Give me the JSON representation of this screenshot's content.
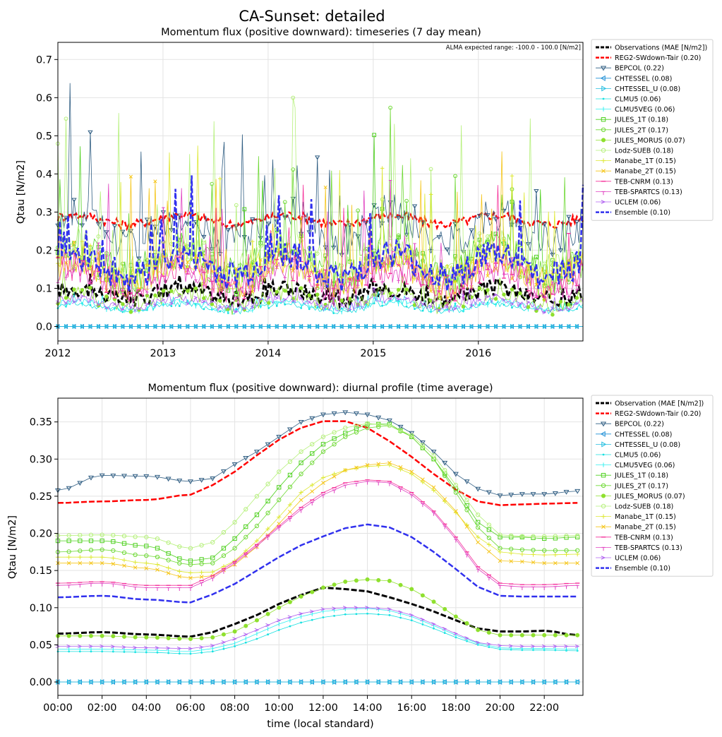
{
  "figure": {
    "suptitle": "CA-Sunset: detailed"
  },
  "chart_data": [
    {
      "type": "line",
      "title": "Momentum flux (positive downward): timeseries (7 day mean)",
      "annotation": "ALMA expected range: -100.0 - 100.0 [N/m2]",
      "xlabel": "",
      "ylabel": "Qtau [N/m2]",
      "xlim": [
        2012.0,
        2016.995
      ],
      "ylim": [
        -0.038,
        0.745
      ],
      "xticks": [
        2012,
        2013,
        2014,
        2015,
        2016
      ],
      "xtick_labels": [
        "2012",
        "2013",
        "2014",
        "2015",
        "2016"
      ],
      "yticks": [
        0.0,
        0.1,
        0.2,
        0.3,
        0.4,
        0.5,
        0.6,
        0.7
      ],
      "ytick_labels": [
        "0.0",
        "0.1",
        "0.2",
        "0.3",
        "0.4",
        "0.5",
        "0.6",
        "0.7"
      ],
      "grid": true,
      "legend_position": "outside-right",
      "series": [
        {
          "name": "Observations (MAE [N/m2])",
          "color": "#000000",
          "style": "dashed",
          "marker": "",
          "width": 3,
          "base": 0.085,
          "noise": 0.022,
          "season": 0.015,
          "spike": 0.012
        },
        {
          "name": "REG2-SWdown-Tair (0.20)",
          "color": "#ff0000",
          "style": "dashed",
          "marker": "",
          "width": 2.5,
          "base": 0.28,
          "noise": 0.012,
          "season": 0.012,
          "spike": 0.0
        },
        {
          "name": "BEPCOL (0.22)",
          "color": "#2f5d82",
          "style": "solid",
          "marker": "tri-down",
          "width": 0.8,
          "base": 0.26,
          "noise": 0.05,
          "season": 0.04,
          "spike": 0.08
        },
        {
          "name": "CHTESSEL (0.08)",
          "color": "#1f8fd6",
          "style": "solid",
          "marker": "tri-left",
          "width": 0.8,
          "base": 0.0,
          "noise": 0.0,
          "season": 0.0,
          "spike": 0.0
        },
        {
          "name": "CHTESSEL_U (0.08)",
          "color": "#22bde0",
          "style": "solid",
          "marker": "tri-right",
          "width": 0.8,
          "base": 0.0,
          "noise": 0.0,
          "season": 0.0,
          "spike": 0.0
        },
        {
          "name": "CLMU5 (0.06)",
          "color": "#17e0e0",
          "style": "solid",
          "marker": "dot",
          "width": 0.8,
          "base": 0.05,
          "noise": 0.008,
          "season": 0.01,
          "spike": 0.005
        },
        {
          "name": "CLMU5VEG (0.06)",
          "color": "#30f0f0",
          "style": "solid",
          "marker": "vline",
          "width": 0.8,
          "base": 0.055,
          "noise": 0.009,
          "season": 0.01,
          "spike": 0.006
        },
        {
          "name": "JULES_1T (0.18)",
          "color": "#4fd11f",
          "style": "solid",
          "marker": "square",
          "width": 0.8,
          "base": 0.17,
          "noise": 0.05,
          "season": 0.04,
          "spike": 0.1
        },
        {
          "name": "JULES_2T (0.17)",
          "color": "#6fd935",
          "style": "solid",
          "marker": "circle",
          "width": 0.8,
          "base": 0.16,
          "noise": 0.05,
          "season": 0.04,
          "spike": 0.095
        },
        {
          "name": "JULES_MORUS (0.07)",
          "color": "#8fe02e",
          "style": "solid",
          "marker": "filled-circle",
          "width": 0.8,
          "base": 0.07,
          "noise": 0.02,
          "season": 0.02,
          "spike": 0.015
        },
        {
          "name": "Lodz-SUEB (0.18)",
          "color": "#b5f07a",
          "style": "solid",
          "marker": "circle",
          "width": 0.8,
          "base": 0.18,
          "noise": 0.05,
          "season": 0.04,
          "spike": 0.1
        },
        {
          "name": "Manabe_1T (0.15)",
          "color": "#dde830",
          "style": "solid",
          "marker": "plus",
          "width": 0.8,
          "base": 0.15,
          "noise": 0.045,
          "season": 0.035,
          "spike": 0.08
        },
        {
          "name": "Manabe_2T (0.15)",
          "color": "#f5c518",
          "style": "solid",
          "marker": "x",
          "width": 0.8,
          "base": 0.145,
          "noise": 0.045,
          "season": 0.035,
          "spike": 0.08
        },
        {
          "name": "TEB-CNRM (0.13)",
          "color": "#f5309a",
          "style": "solid",
          "marker": "dash",
          "width": 0.8,
          "base": 0.13,
          "noise": 0.04,
          "season": 0.03,
          "spike": 0.06
        },
        {
          "name": "TEB-SPARTCS (0.13)",
          "color": "#e040c0",
          "style": "solid",
          "marker": "tick",
          "width": 0.8,
          "base": 0.125,
          "noise": 0.04,
          "season": 0.03,
          "spike": 0.06
        },
        {
          "name": "UCLEM (0.06)",
          "color": "#b060f0",
          "style": "solid",
          "marker": "arrow",
          "width": 0.8,
          "base": 0.06,
          "noise": 0.012,
          "season": 0.012,
          "spike": 0.008
        },
        {
          "name": "Ensemble (0.10)",
          "color": "#3030ee",
          "style": "dashed",
          "marker": "",
          "width": 2.5,
          "base": 0.16,
          "noise": 0.04,
          "season": 0.03,
          "spike": 0.05
        }
      ]
    },
    {
      "type": "line",
      "title": "Momentum flux (positive downward): diurnal profile (time average)",
      "xlabel": "time (local standard)",
      "ylabel": "Qtau [N/m2]",
      "xlim": [
        0,
        23.75
      ],
      "ylim": [
        -0.018,
        0.382
      ],
      "xticks": [
        0,
        2,
        4,
        6,
        8,
        10,
        12,
        14,
        16,
        18,
        20,
        22
      ],
      "xtick_labels": [
        "00:00",
        "02:00",
        "04:00",
        "06:00",
        "08:00",
        "10:00",
        "12:00",
        "14:00",
        "16:00",
        "18:00",
        "20:00",
        "22:00"
      ],
      "yticks": [
        0.0,
        0.05,
        0.1,
        0.15,
        0.2,
        0.25,
        0.3,
        0.35
      ],
      "ytick_labels": [
        "0.00",
        "0.05",
        "0.10",
        "0.15",
        "0.20",
        "0.25",
        "0.30",
        "0.35"
      ],
      "grid": true,
      "legend_position": "outside-right",
      "x": [
        0,
        2,
        4,
        6,
        7,
        8,
        9,
        10,
        11,
        12,
        13,
        14,
        15,
        16,
        17,
        18,
        19,
        20,
        21,
        22,
        23.5
      ],
      "series": [
        {
          "name": "Observation (MAE [N/m2])",
          "color": "#000000",
          "style": "dashed",
          "marker": "",
          "width": 3,
          "values": [
            0.065,
            0.067,
            0.064,
            0.061,
            0.067,
            0.078,
            0.09,
            0.105,
            0.117,
            0.127,
            0.125,
            0.122,
            0.114,
            0.105,
            0.095,
            0.083,
            0.072,
            0.068,
            0.068,
            0.069,
            0.063
          ]
        },
        {
          "name": "REG2-SWdown-Tair (0.20)",
          "color": "#ff0000",
          "style": "dashed",
          "marker": "",
          "width": 2.5,
          "values": [
            0.241,
            0.243,
            0.245,
            0.252,
            0.265,
            0.283,
            0.305,
            0.326,
            0.342,
            0.351,
            0.351,
            0.342,
            0.324,
            0.303,
            0.28,
            0.259,
            0.243,
            0.238,
            0.239,
            0.24,
            0.241
          ]
        },
        {
          "name": "BEPCOL (0.22)",
          "color": "#2f5d82",
          "style": "solid",
          "marker": "tri-down",
          "width": 0.8,
          "values": [
            0.258,
            0.278,
            0.277,
            0.27,
            0.274,
            0.293,
            0.31,
            0.33,
            0.35,
            0.36,
            0.363,
            0.36,
            0.352,
            0.335,
            0.31,
            0.28,
            0.26,
            0.251,
            0.253,
            0.253,
            0.257
          ]
        },
        {
          "name": "CHTESSEL (0.08)",
          "color": "#1f8fd6",
          "style": "solid",
          "marker": "tri-left",
          "width": 0.8,
          "values": [
            0,
            0,
            0,
            0,
            0,
            0,
            0,
            0,
            0,
            0,
            0,
            0,
            0,
            0,
            0,
            0,
            0,
            0,
            0,
            0,
            0
          ]
        },
        {
          "name": "CHTESSEL_U (0.08)",
          "color": "#22bde0",
          "style": "solid",
          "marker": "tri-right",
          "width": 0.8,
          "values": [
            0,
            0,
            0,
            0,
            0,
            0,
            0,
            0,
            0,
            0,
            0,
            0,
            0,
            0,
            0,
            0,
            0,
            0,
            0,
            0,
            0
          ]
        },
        {
          "name": "CLMU5 (0.06)",
          "color": "#17e0e0",
          "style": "solid",
          "marker": "dot",
          "width": 0.8,
          "values": [
            0.041,
            0.041,
            0.04,
            0.038,
            0.041,
            0.048,
            0.058,
            0.07,
            0.08,
            0.087,
            0.091,
            0.092,
            0.09,
            0.083,
            0.072,
            0.06,
            0.05,
            0.044,
            0.043,
            0.043,
            0.042
          ]
        },
        {
          "name": "CLMU5VEG (0.06)",
          "color": "#30f0f0",
          "style": "solid",
          "marker": "vline",
          "width": 0.8,
          "values": [
            0.044,
            0.044,
            0.043,
            0.041,
            0.045,
            0.052,
            0.065,
            0.078,
            0.088,
            0.095,
            0.098,
            0.099,
            0.096,
            0.088,
            0.076,
            0.063,
            0.052,
            0.046,
            0.045,
            0.045,
            0.044
          ]
        },
        {
          "name": "JULES_1T (0.18)",
          "color": "#4fd11f",
          "style": "solid",
          "marker": "square",
          "width": 0.8,
          "values": [
            0.19,
            0.19,
            0.183,
            0.163,
            0.167,
            0.193,
            0.225,
            0.262,
            0.295,
            0.32,
            0.335,
            0.347,
            0.347,
            0.33,
            0.3,
            0.26,
            0.215,
            0.195,
            0.195,
            0.193,
            0.195
          ]
        },
        {
          "name": "JULES_2T (0.17)",
          "color": "#6fd935",
          "style": "solid",
          "marker": "circle",
          "width": 0.8,
          "values": [
            0.175,
            0.178,
            0.17,
            0.158,
            0.16,
            0.18,
            0.21,
            0.245,
            0.28,
            0.31,
            0.33,
            0.342,
            0.345,
            0.33,
            0.3,
            0.255,
            0.208,
            0.18,
            0.178,
            0.177,
            0.177
          ]
        },
        {
          "name": "JULES_MORUS (0.07)",
          "color": "#8fe02e",
          "style": "solid",
          "marker": "filled-circle",
          "width": 0.8,
          "values": [
            0.062,
            0.062,
            0.06,
            0.058,
            0.06,
            0.068,
            0.083,
            0.1,
            0.115,
            0.127,
            0.135,
            0.138,
            0.136,
            0.125,
            0.108,
            0.088,
            0.07,
            0.063,
            0.063,
            0.063,
            0.063
          ]
        },
        {
          "name": "Lodz-SUEB (0.18)",
          "color": "#b5f07a",
          "style": "solid",
          "marker": "circle",
          "width": 0.8,
          "values": [
            0.197,
            0.198,
            0.195,
            0.18,
            0.188,
            0.215,
            0.25,
            0.283,
            0.31,
            0.33,
            0.342,
            0.348,
            0.345,
            0.332,
            0.305,
            0.265,
            0.225,
            0.198,
            0.196,
            0.196,
            0.197
          ]
        },
        {
          "name": "Manabe_1T (0.15)",
          "color": "#dde830",
          "style": "solid",
          "marker": "plus",
          "width": 0.8,
          "values": [
            0.168,
            0.168,
            0.16,
            0.147,
            0.148,
            0.163,
            0.19,
            0.222,
            0.255,
            0.275,
            0.285,
            0.29,
            0.292,
            0.28,
            0.258,
            0.228,
            0.195,
            0.175,
            0.172,
            0.171,
            0.172
          ]
        },
        {
          "name": "Manabe_2T (0.15)",
          "color": "#f5c518",
          "style": "solid",
          "marker": "x",
          "width": 0.8,
          "values": [
            0.16,
            0.16,
            0.153,
            0.14,
            0.143,
            0.158,
            0.182,
            0.213,
            0.245,
            0.268,
            0.285,
            0.292,
            0.295,
            0.283,
            0.262,
            0.23,
            0.188,
            0.163,
            0.162,
            0.16,
            0.16
          ]
        },
        {
          "name": "TEB-CNRM (0.13)",
          "color": "#f5309a",
          "style": "solid",
          "marker": "dash",
          "width": 0.8,
          "values": [
            0.133,
            0.135,
            0.13,
            0.13,
            0.143,
            0.162,
            0.185,
            0.21,
            0.235,
            0.255,
            0.268,
            0.272,
            0.27,
            0.255,
            0.23,
            0.195,
            0.155,
            0.133,
            0.131,
            0.131,
            0.133
          ]
        },
        {
          "name": "TEB-SPARTCS (0.13)",
          "color": "#e040c0",
          "style": "solid",
          "marker": "tick",
          "width": 0.8,
          "values": [
            0.13,
            0.133,
            0.127,
            0.127,
            0.14,
            0.16,
            0.183,
            0.208,
            0.232,
            0.252,
            0.265,
            0.27,
            0.268,
            0.252,
            0.228,
            0.192,
            0.152,
            0.13,
            0.128,
            0.128,
            0.13
          ]
        },
        {
          "name": "UCLEM (0.06)",
          "color": "#b060f0",
          "style": "solid",
          "marker": "arrow",
          "width": 0.8,
          "values": [
            0.048,
            0.048,
            0.046,
            0.045,
            0.049,
            0.058,
            0.07,
            0.083,
            0.092,
            0.098,
            0.1,
            0.1,
            0.098,
            0.09,
            0.078,
            0.065,
            0.053,
            0.049,
            0.048,
            0.048,
            0.048
          ]
        },
        {
          "name": "Ensemble (0.10)",
          "color": "#3030ee",
          "style": "dashed",
          "marker": "",
          "width": 2.5,
          "values": [
            0.114,
            0.116,
            0.111,
            0.107,
            0.118,
            0.132,
            0.15,
            0.168,
            0.184,
            0.196,
            0.207,
            0.212,
            0.208,
            0.195,
            0.175,
            0.152,
            0.128,
            0.116,
            0.115,
            0.115,
            0.115
          ]
        }
      ]
    }
  ]
}
